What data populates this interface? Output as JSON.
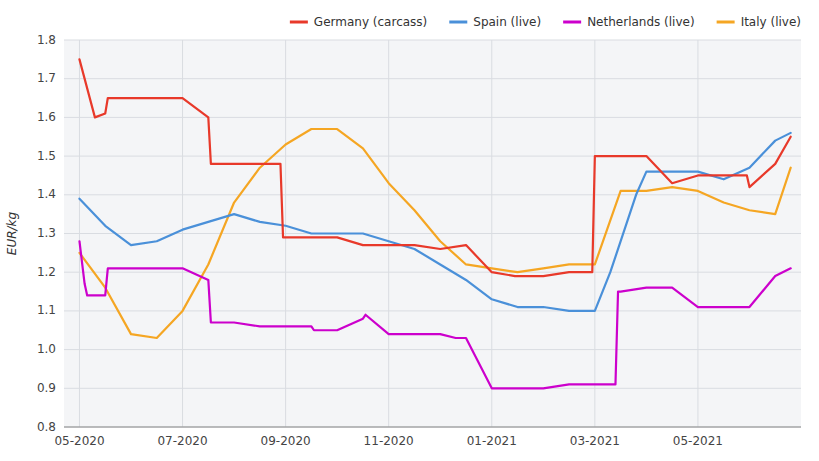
{
  "chart_data": {
    "type": "line",
    "y_label": "EUR/kg",
    "xlim": [
      -0.3,
      14.0
    ],
    "ylim": [
      0.8,
      1.8
    ],
    "xticks": [
      {
        "value": 0,
        "label": "05-2020"
      },
      {
        "value": 2,
        "label": "07-2020"
      },
      {
        "value": 4,
        "label": "09-2020"
      },
      {
        "value": 6,
        "label": "11-2020"
      },
      {
        "value": 8,
        "label": "01-2021"
      },
      {
        "value": 10,
        "label": "03-2021"
      },
      {
        "value": 12,
        "label": "05-2021"
      }
    ],
    "yticks": [
      0.8,
      0.9,
      {
        "value": 1.0,
        "label": "1.0"
      },
      1.1,
      1.2,
      1.3,
      1.4,
      1.5,
      1.6,
      1.7,
      1.8
    ],
    "grid": true,
    "legend": "top",
    "series": [
      {
        "name": "Germany (carcass)",
        "color": "#e8392a",
        "x": [
          0.0,
          0.3,
          0.5,
          0.55,
          1.0,
          1.5,
          2.0,
          2.5,
          2.55,
          3.0,
          3.5,
          3.9,
          3.95,
          4.0,
          4.5,
          5.0,
          5.5,
          6.0,
          6.5,
          7.0,
          7.5,
          8.0,
          8.45,
          8.5,
          9.0,
          9.5,
          9.95,
          10.0,
          10.5,
          11.0,
          11.5,
          12.0,
          12.5,
          12.95,
          13.0,
          13.5,
          13.8
        ],
        "values": [
          1.75,
          1.6,
          1.61,
          1.65,
          1.65,
          1.65,
          1.65,
          1.6,
          1.48,
          1.48,
          1.48,
          1.48,
          1.29,
          1.29,
          1.29,
          1.29,
          1.27,
          1.27,
          1.27,
          1.26,
          1.27,
          1.2,
          1.19,
          1.19,
          1.19,
          1.2,
          1.2,
          1.5,
          1.5,
          1.5,
          1.43,
          1.45,
          1.45,
          1.45,
          1.42,
          1.48,
          1.55
        ]
      },
      {
        "name": "Spain (live)",
        "color": "#4a90d9",
        "x": [
          0.0,
          0.5,
          1.0,
          1.5,
          2.0,
          2.5,
          3.0,
          3.5,
          4.0,
          4.5,
          5.0,
          5.5,
          6.0,
          6.5,
          7.0,
          7.5,
          8.0,
          8.5,
          9.0,
          9.5,
          10.0,
          10.3,
          10.8,
          11.0,
          11.5,
          12.0,
          12.5,
          13.0,
          13.5,
          13.8
        ],
        "values": [
          1.39,
          1.32,
          1.27,
          1.28,
          1.31,
          1.33,
          1.35,
          1.33,
          1.32,
          1.3,
          1.3,
          1.3,
          1.28,
          1.26,
          1.22,
          1.18,
          1.13,
          1.11,
          1.11,
          1.1,
          1.1,
          1.2,
          1.4,
          1.46,
          1.46,
          1.46,
          1.44,
          1.47,
          1.54,
          1.56
        ]
      },
      {
        "name": "Netherlands (live)",
        "color": "#cc00cc",
        "x": [
          0.0,
          0.1,
          0.15,
          0.5,
          0.55,
          1.0,
          1.5,
          2.0,
          2.5,
          2.55,
          3.0,
          3.5,
          4.0,
          4.5,
          4.55,
          5.0,
          5.5,
          5.55,
          6.0,
          6.5,
          7.0,
          7.3,
          7.35,
          7.5,
          8.0,
          8.5,
          9.0,
          9.5,
          10.0,
          10.4,
          10.45,
          10.5,
          11.0,
          11.5,
          12.0,
          12.5,
          13.0,
          13.5,
          13.8
        ],
        "values": [
          1.28,
          1.17,
          1.14,
          1.14,
          1.21,
          1.21,
          1.21,
          1.21,
          1.18,
          1.07,
          1.07,
          1.06,
          1.06,
          1.06,
          1.05,
          1.05,
          1.08,
          1.09,
          1.04,
          1.04,
          1.04,
          1.03,
          1.03,
          1.03,
          0.9,
          0.9,
          0.9,
          0.91,
          0.91,
          0.91,
          1.15,
          1.15,
          1.16,
          1.16,
          1.11,
          1.11,
          1.11,
          1.19,
          1.21
        ]
      },
      {
        "name": "Italy (live)",
        "color": "#f5a623",
        "x": [
          0.0,
          0.5,
          1.0,
          1.5,
          2.0,
          2.5,
          3.0,
          3.5,
          4.0,
          4.5,
          5.0,
          5.5,
          6.0,
          6.5,
          7.0,
          7.5,
          8.0,
          8.5,
          9.0,
          9.5,
          10.0,
          10.5,
          11.0,
          11.5,
          12.0,
          12.5,
          13.0,
          13.5,
          13.8
        ],
        "values": [
          1.25,
          1.16,
          1.04,
          1.03,
          1.1,
          1.22,
          1.38,
          1.47,
          1.53,
          1.57,
          1.57,
          1.52,
          1.43,
          1.36,
          1.28,
          1.22,
          1.21,
          1.2,
          1.21,
          1.22,
          1.22,
          1.41,
          1.41,
          1.42,
          1.41,
          1.38,
          1.36,
          1.35,
          1.47
        ]
      }
    ]
  }
}
